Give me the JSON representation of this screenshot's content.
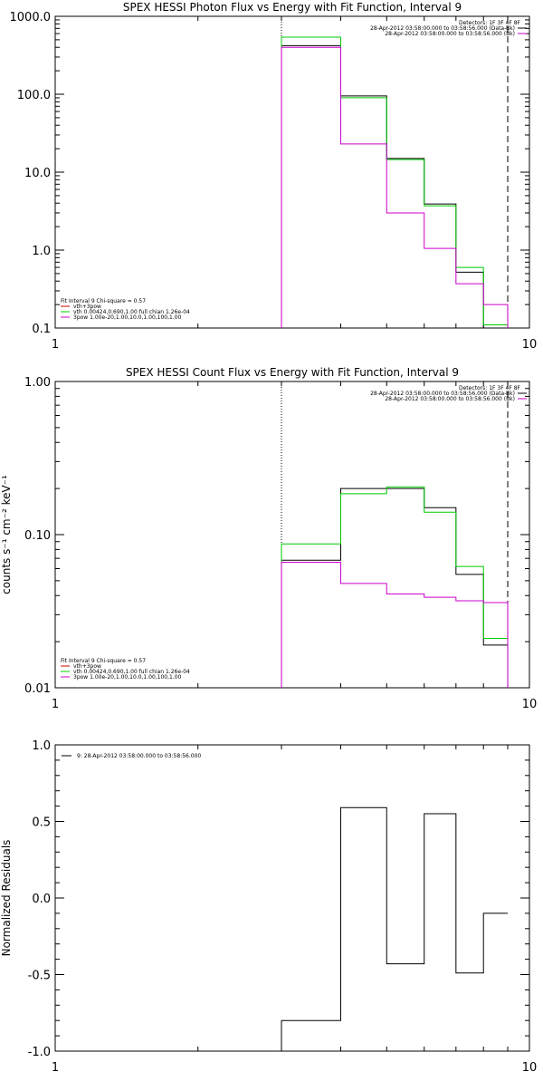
{
  "chart_data": [
    {
      "type": "line",
      "title": "SPEX HESSI Photon Flux vs Energy with Fit Function, Interval 9",
      "xlabel": "",
      "ylabel": "",
      "x_scale": "log",
      "y_scale": "log",
      "xlim": [
        1,
        10
      ],
      "ylim": [
        0.1,
        1000
      ],
      "x_tick_labels": [
        "1",
        "10"
      ],
      "y_ticks": [
        0.1,
        1,
        10,
        100,
        1000
      ],
      "y_tick_labels": [
        "0.1",
        "1.0",
        "10.0",
        "100.0",
        "1000.0"
      ],
      "vertical_lines": [
        {
          "x": 3.0,
          "style": "dotted"
        },
        {
          "x": 9.0,
          "style": "dashed"
        }
      ],
      "bin_edges": [
        3.0,
        4.0,
        5.0,
        6.0,
        7.0,
        8.0,
        9.0
      ],
      "series": [
        {
          "name": "vth+3pow",
          "color": "#000000",
          "values": [
            420,
            95,
            15,
            3.9,
            0.52,
            0.1
          ]
        },
        {
          "name": "vth 0.00424,0.690,1.00  full chian 1.26e-04",
          "color": "#00cc00",
          "values": [
            540,
            90,
            14.5,
            3.7,
            0.6,
            0.11
          ]
        },
        {
          "name": "3pow 1.00e-20,1.00,10.0,1.00,100,1.00",
          "color": "#cc00cc",
          "values": [
            400,
            23,
            3.0,
            1.05,
            0.37,
            0.2
          ]
        }
      ],
      "legend_header": "Detectors: 1F 3F 4F 8F",
      "legend_lines": [
        {
          "text": "28-Apr-2012 03:58:00.000 to 03:58:56.000 (Data-Bk)",
          "color": "#000000"
        },
        {
          "text": "28-Apr-2012 03:58:00.000 to 03:58:56.000 (Bk)",
          "color": "#cc00cc"
        }
      ],
      "fit_header": "Fit Interval 9   Chi-square = 0.57",
      "fit_lines": [
        {
          "text": "vth+3pow",
          "color": "#cc0000"
        },
        {
          "text": "vth 0.00424,0.690,1.00  full chian 1.26e-04",
          "color": "#00cc00"
        },
        {
          "text": "3pow 1.00e-20,1.00,10.0,1.00,100,1.00",
          "color": "#cc00cc"
        }
      ]
    },
    {
      "type": "line",
      "title": "SPEX HESSI Count Flux vs Energy with Fit Function, Interval 9",
      "xlabel": "",
      "ylabel": "counts s⁻¹ cm⁻² keV⁻¹",
      "x_scale": "log",
      "y_scale": "log",
      "xlim": [
        1,
        10
      ],
      "ylim": [
        0.01,
        1.0
      ],
      "x_tick_labels": [
        "1",
        "10"
      ],
      "y_ticks": [
        0.01,
        0.1,
        1.0
      ],
      "y_tick_labels": [
        "0.01",
        "0.10",
        "1.00"
      ],
      "vertical_lines": [
        {
          "x": 3.0,
          "style": "dotted"
        },
        {
          "x": 9.0,
          "style": "dashed"
        }
      ],
      "bin_edges": [
        3.0,
        4.0,
        5.0,
        6.0,
        7.0,
        8.0,
        9.0
      ],
      "series": [
        {
          "name": "vth+3pow",
          "color": "#000000",
          "values": [
            0.068,
            0.2,
            0.2,
            0.15,
            0.055,
            0.019
          ]
        },
        {
          "name": "vth 0.00424,0.690,1.00  full chian 1.26e-04",
          "color": "#00cc00",
          "values": [
            0.087,
            0.185,
            0.205,
            0.14,
            0.062,
            0.021
          ]
        },
        {
          "name": "3pow 1.00e-20,1.00,10.0,1.00,100,1.00",
          "color": "#cc00cc",
          "values": [
            0.066,
            0.048,
            0.041,
            0.039,
            0.037,
            0.036
          ]
        }
      ],
      "legend_header": "Detectors: 1F 3F 4F 8F",
      "legend_lines": [
        {
          "text": "28-Apr-2012 03:58:00.000 to 03:58:56.000 (Data-Bk)",
          "color": "#000000"
        },
        {
          "text": "28-Apr-2012 03:58:00.000 to 03:58:56.000 (Bk)",
          "color": "#cc00cc"
        }
      ],
      "fit_header": "Fit Interval 9   Chi-square = 0.57",
      "fit_lines": [
        {
          "text": "vth+3pow",
          "color": "#cc0000"
        },
        {
          "text": "vth 0.00424,0.690,1.00  full chian 1.26e-04",
          "color": "#00cc00"
        },
        {
          "text": "3pow 1.00e-20,1.00,10.0,1.00,100,1.00",
          "color": "#cc00cc"
        }
      ]
    },
    {
      "type": "line",
      "title": "",
      "xlabel": "",
      "ylabel": "Normalized Residuals",
      "x_scale": "log",
      "y_scale": "linear",
      "xlim": [
        1,
        10
      ],
      "ylim": [
        -1.0,
        1.0
      ],
      "x_tick_labels": [
        "1",
        "10"
      ],
      "y_ticks": [
        -1.0,
        -0.5,
        0.0,
        0.5,
        1.0
      ],
      "y_tick_labels": [
        "-1.0",
        "-0.5",
        "0.0",
        "0.5",
        "1.0"
      ],
      "vertical_lines": [],
      "bin_edges": [
        3.0,
        4.0,
        5.0,
        6.0,
        7.0,
        8.0,
        9.0
      ],
      "series": [
        {
          "name": "9: 28-Apr-2012 03:58:00.000 to 03:58:56.000",
          "color": "#000000",
          "values": [
            -0.8,
            0.59,
            -0.43,
            0.55,
            -0.49,
            -0.1
          ]
        }
      ],
      "legend_header": "",
      "legend_lines": [
        {
          "text": "9: 28-Apr-2012 03:58:00.000 to 03:58:56.000",
          "color": "#000000"
        }
      ],
      "fit_header": "",
      "fit_lines": []
    }
  ]
}
